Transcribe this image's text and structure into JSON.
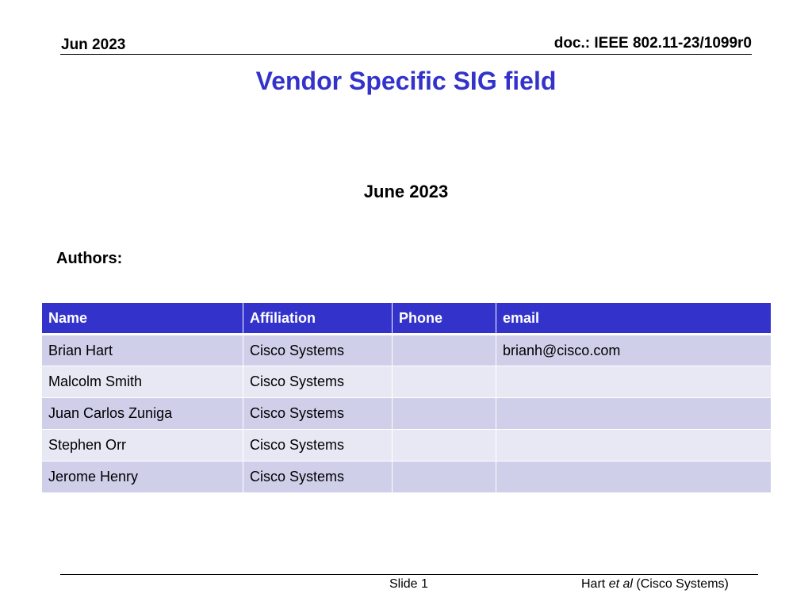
{
  "header": {
    "date_label": "Jun 2023",
    "doc_label": "doc.: IEEE 802.11-23/1099r0"
  },
  "title": "Vendor Specific SIG field",
  "date": "June 2023",
  "authors_label": "Authors:",
  "table": {
    "columns": [
      "Name",
      "Affiliation",
      "Phone",
      "email"
    ],
    "rows": [
      [
        "Brian Hart",
        "Cisco Systems",
        "",
        "brianh@cisco.com"
      ],
      [
        "Malcolm Smith",
        "Cisco Systems",
        "",
        ""
      ],
      [
        "Juan Carlos Zuniga",
        "Cisco Systems",
        "",
        ""
      ],
      [
        "Stephen Orr",
        "Cisco Systems",
        "",
        ""
      ],
      [
        "Jerome Henry",
        "Cisco Systems",
        "",
        ""
      ]
    ]
  },
  "footer": {
    "slide": "Slide 1",
    "author_name": "Hart",
    "author_etal": "et al",
    "author_org": "(Cisco Systems)"
  },
  "colors": {
    "title": "#3333cc",
    "table_header_bg": "#3333cc",
    "row_odd_bg": "#cfcfea",
    "row_even_bg": "#e8e8f4"
  }
}
